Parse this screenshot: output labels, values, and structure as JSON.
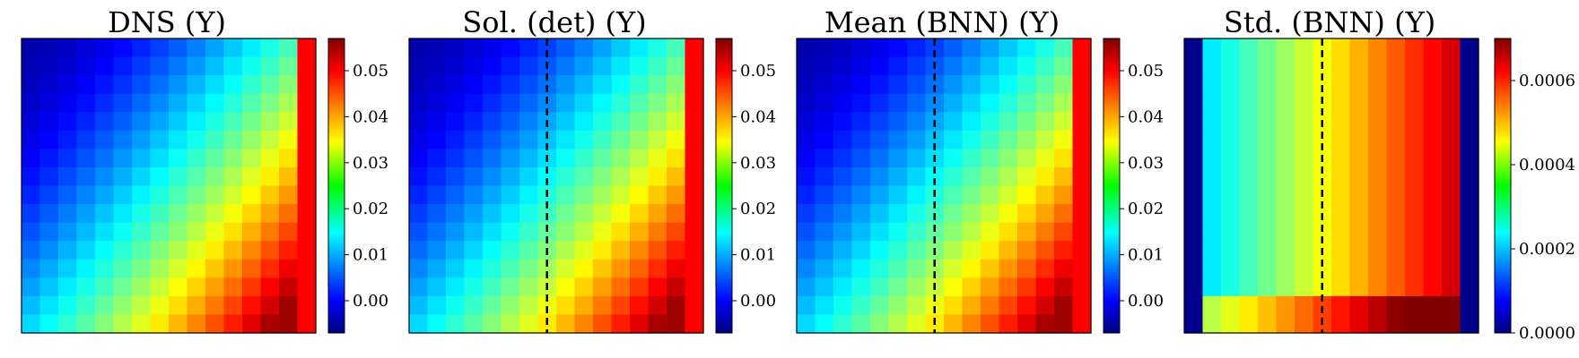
{
  "figure": {
    "colormap": "jet",
    "grid_size": [
      16,
      16
    ]
  },
  "chart_data": [
    {
      "type": "heatmap",
      "title": "DNS (Y)",
      "field": "mean",
      "dashed_line": false,
      "colorbar": {
        "min": -0.007,
        "max": 0.057,
        "ticks": [
          0.0,
          0.01,
          0.02,
          0.03,
          0.04,
          0.05
        ],
        "tick_labels": [
          "0.00",
          "0.01",
          "0.02",
          "0.03",
          "0.04",
          "0.05"
        ]
      }
    },
    {
      "type": "heatmap",
      "title": "Sol. (det) (Y)",
      "field": "mean",
      "dashed_line": true,
      "dashed_line_column": 7.5,
      "colorbar": {
        "min": -0.007,
        "max": 0.057,
        "ticks": [
          0.0,
          0.01,
          0.02,
          0.03,
          0.04,
          0.05
        ],
        "tick_labels": [
          "0.00",
          "0.01",
          "0.02",
          "0.03",
          "0.04",
          "0.05"
        ]
      }
    },
    {
      "type": "heatmap",
      "title": "Mean (BNN) (Y)",
      "field": "mean",
      "dashed_line": true,
      "dashed_line_column": 7.5,
      "colorbar": {
        "min": -0.007,
        "max": 0.057,
        "ticks": [
          0.0,
          0.01,
          0.02,
          0.03,
          0.04,
          0.05
        ],
        "tick_labels": [
          "0.00",
          "0.01",
          "0.02",
          "0.03",
          "0.04",
          "0.05"
        ]
      }
    },
    {
      "type": "heatmap",
      "title": "Std. (BNN) (Y)",
      "field": "std",
      "dashed_line": true,
      "dashed_line_column": 7.5,
      "colorbar": {
        "min": 0.0,
        "max": 0.0007,
        "ticks": [
          0.0,
          0.0002,
          0.0004,
          0.0006
        ],
        "tick_labels": [
          "0.0000",
          "0.0002",
          "0.0004",
          "0.0006"
        ]
      }
    }
  ]
}
